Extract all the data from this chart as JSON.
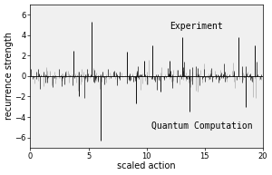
{
  "xlabel": "scaled action",
  "ylabel": "recurrence strength",
  "xlim": [
    0,
    20
  ],
  "ylim": [
    -7,
    7
  ],
  "yticks": [
    -6,
    -4,
    -2,
    0,
    2,
    4,
    6
  ],
  "xticks": [
    0,
    5,
    10,
    15,
    20
  ],
  "label_experiment": "Experiment",
  "label_quantum": "Quantum Computation",
  "background_color": "#ffffff",
  "plot_bg_color": "#f0f0f0",
  "exp_color": "#111111",
  "qc_color": "#aaaaaa",
  "axis_fontsize": 7,
  "tick_fontsize": 6,
  "annot_fontsize": 7
}
